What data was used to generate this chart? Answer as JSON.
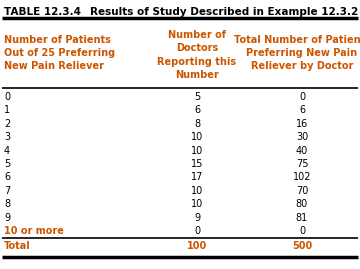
{
  "title_part1": "TABLE 12.3.4",
  "title_part2": "Results of Study Described in Example 12.3.2",
  "col_headers": [
    "Number of Patients\nOut of 25 Preferring\nNew Pain Reliever",
    "Number of\nDoctors\nReporting this\nNumber",
    "Total Number of Patients\nPreferring New Pain\nReliever by Doctor"
  ],
  "rows": [
    [
      "0",
      "5",
      "0"
    ],
    [
      "1",
      "6",
      "6"
    ],
    [
      "2",
      "8",
      "16"
    ],
    [
      "3",
      "10",
      "30"
    ],
    [
      "4",
      "10",
      "40"
    ],
    [
      "5",
      "15",
      "75"
    ],
    [
      "6",
      "17",
      "102"
    ],
    [
      "7",
      "10",
      "70"
    ],
    [
      "8",
      "10",
      "80"
    ],
    [
      "9",
      "9",
      "81"
    ],
    [
      "10 or more",
      "0",
      "0"
    ]
  ],
  "total_row": [
    "Total",
    "100",
    "500"
  ],
  "text_color": "#000000",
  "orange_color": "#cc5500",
  "line_color": "#000000",
  "font_size": 7.0,
  "header_font_size": 7.0,
  "title_font_size": 7.5
}
